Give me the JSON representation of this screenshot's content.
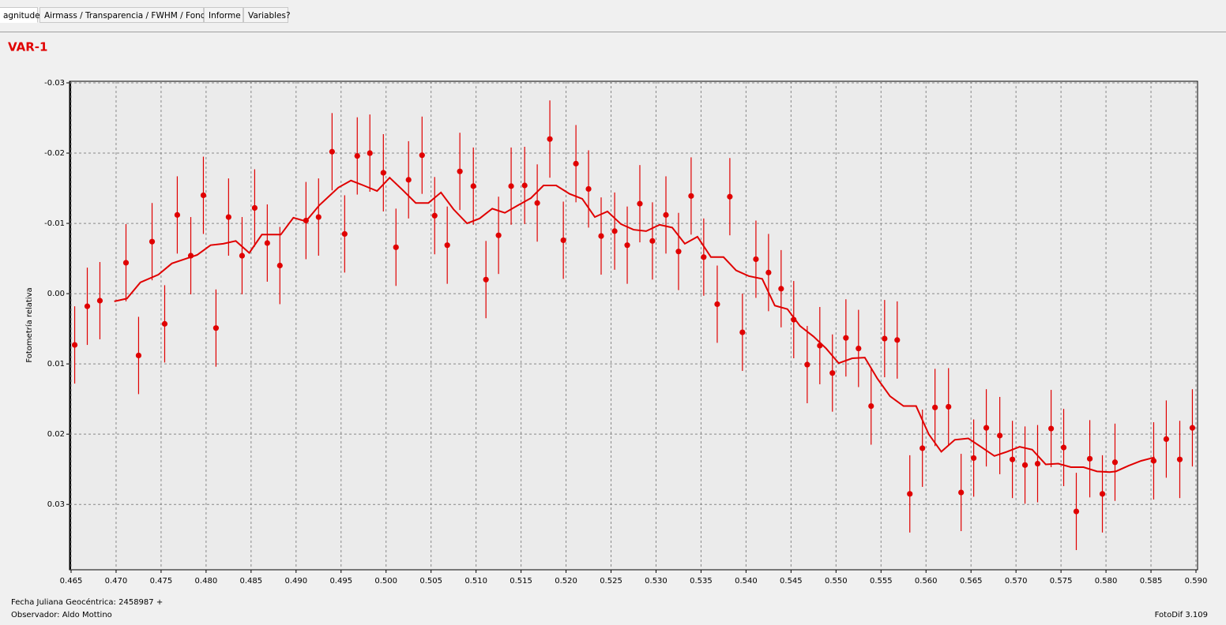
{
  "tabs": [
    "agnitudes",
    "Airmass / Transparencia / FWHM / Fondo",
    "Informe",
    "Variables?"
  ],
  "footer": {
    "date_label": "Fecha Juliana Geocéntrica: 2458987 +",
    "observer": "Observador: Aldo Mottino",
    "version": "FotoDif 3.109"
  },
  "chart_data": {
    "type": "scatter",
    "title": "VAR-1",
    "y_label": "Fotometría relativa",
    "y_inverted": true,
    "grid": true,
    "xlim": [
      0.465,
      0.59
    ],
    "ylim": [
      -0.03,
      0.0393
    ],
    "xticks": [
      {
        "value": 0.465,
        "label": "0.465"
      },
      {
        "value": 0.47,
        "label": "0.470"
      },
      {
        "value": 0.475,
        "label": "0.475"
      },
      {
        "value": 0.48,
        "label": "0.480"
      },
      {
        "value": 0.485,
        "label": "0.485"
      },
      {
        "value": 0.49,
        "label": "0.490"
      },
      {
        "value": 0.495,
        "label": "0.495"
      },
      {
        "value": 0.5,
        "label": "0.500"
      },
      {
        "value": 0.505,
        "label": "0.505"
      },
      {
        "value": 0.51,
        "label": "0.510"
      },
      {
        "value": 0.515,
        "label": "0.515"
      },
      {
        "value": 0.52,
        "label": "0.520"
      },
      {
        "value": 0.525,
        "label": "0.525"
      },
      {
        "value": 0.53,
        "label": "0.530"
      },
      {
        "value": 0.535,
        "label": "0.535"
      },
      {
        "value": 0.54,
        "label": "0.540"
      },
      {
        "value": 0.545,
        "label": "0.545"
      },
      {
        "value": 0.55,
        "label": "0.550"
      },
      {
        "value": 0.555,
        "label": "0.555"
      },
      {
        "value": 0.56,
        "label": "0.560"
      },
      {
        "value": 0.565,
        "label": "0.565"
      },
      {
        "value": 0.57,
        "label": "0.570"
      },
      {
        "value": 0.575,
        "label": "0.575"
      },
      {
        "value": 0.58,
        "label": "0.580"
      },
      {
        "value": 0.585,
        "label": "0.585"
      },
      {
        "value": 0.59,
        "label": "0.590"
      }
    ],
    "yticks": [
      -0.03,
      -0.02,
      -0.01,
      {
        "value": 0,
        "label": "0.00"
      },
      0.01,
      0.02,
      0.03
    ],
    "series": [
      {
        "type": "scatter",
        "color": "#e00000",
        "x": [
          0.4654,
          0.4668,
          0.4682,
          0.4711,
          0.4725,
          0.474,
          0.4754,
          0.4768,
          0.4783,
          0.4797,
          0.4811,
          0.4825,
          0.484,
          0.4854,
          0.4868,
          0.4882,
          0.4911,
          0.4925,
          0.494,
          0.4954,
          0.4968,
          0.4982,
          0.4997,
          0.5011,
          0.5025,
          0.504,
          0.5054,
          0.5068,
          0.5082,
          0.5097,
          0.5111,
          0.5125,
          0.5139,
          0.5154,
          0.5168,
          0.5182,
          0.5197,
          0.5211,
          0.5225,
          0.5239,
          0.5254,
          0.5268,
          0.5282,
          0.5296,
          0.5311,
          0.5325,
          0.5339,
          0.5353,
          0.5368,
          0.5382,
          0.5396,
          0.5411,
          0.5425,
          0.5439,
          0.5453,
          0.5468,
          0.5482,
          0.5496,
          0.5511,
          0.5525,
          0.5539,
          0.5554,
          0.5568,
          0.5582,
          0.5596,
          0.561,
          0.5625,
          0.5639,
          0.5653,
          0.5667,
          0.5682,
          0.5696,
          0.571,
          0.5724,
          0.5739,
          0.5753,
          0.5767,
          0.5782,
          0.5796,
          0.581,
          0.5853,
          0.5867,
          0.5882,
          0.5896
        ],
        "values": [
          0.0073,
          0.0018,
          0.001,
          -0.0044,
          0.0088,
          -0.0074,
          0.0043,
          -0.0112,
          -0.0054,
          -0.014,
          0.0049,
          -0.0109,
          -0.0054,
          -0.0122,
          -0.0072,
          -0.004,
          -0.0104,
          -0.0109,
          -0.0202,
          -0.0085,
          -0.0196,
          -0.02,
          -0.0172,
          -0.0066,
          -0.0162,
          -0.0197,
          -0.0111,
          -0.0069,
          -0.0174,
          -0.0153,
          -0.002,
          -0.0083,
          -0.0153,
          -0.0154,
          -0.0129,
          -0.022,
          -0.0076,
          -0.0185,
          -0.0149,
          -0.0082,
          -0.0089,
          -0.0069,
          -0.0128,
          -0.0075,
          -0.0112,
          -0.006,
          -0.0139,
          -0.0052,
          0.0015,
          -0.0138,
          0.0055,
          -0.0049,
          -0.003,
          -0.0007,
          0.0037,
          0.0101,
          0.0074,
          0.0113,
          0.0063,
          0.0078,
          0.016,
          0.0064,
          0.0066,
          0.0285,
          0.022,
          0.0162,
          0.0161,
          0.0283,
          0.0234,
          0.0191,
          0.0202,
          0.0236,
          0.0244,
          0.0242,
          0.0192,
          0.0219,
          0.031,
          0.0235,
          0.0285,
          0.024,
          0.0238,
          0.0207,
          0.0236,
          0.0191
        ],
        "errors": [
          0.0055,
          0.0055,
          0.0055,
          0.0055,
          0.0055,
          0.0055,
          0.0055,
          0.0055,
          0.0055,
          0.0055,
          0.0055,
          0.0055,
          0.0055,
          0.0055,
          0.0055,
          0.0055,
          0.0055,
          0.0055,
          0.0055,
          0.0055,
          0.0055,
          0.0055,
          0.0055,
          0.0055,
          0.0055,
          0.0055,
          0.0055,
          0.0055,
          0.0055,
          0.0055,
          0.0055,
          0.0055,
          0.0055,
          0.0055,
          0.0055,
          0.0055,
          0.0055,
          0.0055,
          0.0055,
          0.0055,
          0.0055,
          0.0055,
          0.0055,
          0.0055,
          0.0055,
          0.0055,
          0.0055,
          0.0055,
          0.0055,
          0.0055,
          0.0055,
          0.0055,
          0.0055,
          0.0055,
          0.0055,
          0.0055,
          0.0055,
          0.0055,
          0.0055,
          0.0055,
          0.0055,
          0.0055,
          0.0055,
          0.0055,
          0.0055,
          0.0055,
          0.0055,
          0.0055,
          0.0055,
          0.0055,
          0.0055,
          0.0055,
          0.0055,
          0.0055,
          0.0055,
          0.0055,
          0.0055,
          0.0055,
          0.0055,
          0.0055,
          0.0055,
          0.0055,
          0.0055,
          0.0055
        ]
      },
      {
        "type": "line",
        "color": "#e00000",
        "x": [
          0.4698,
          0.4712,
          0.4727,
          0.4747,
          0.4762,
          0.4776,
          0.479,
          0.4805,
          0.4819,
          0.4833,
          0.4848,
          0.4862,
          0.4883,
          0.4897,
          0.4911,
          0.4926,
          0.4947,
          0.4961,
          0.4975,
          0.499,
          0.5004,
          0.5018,
          0.5033,
          0.5047,
          0.5061,
          0.5075,
          0.509,
          0.5104,
          0.5118,
          0.5132,
          0.5147,
          0.5161,
          0.5175,
          0.5189,
          0.5204,
          0.5218,
          0.5232,
          0.5246,
          0.5261,
          0.5275,
          0.5289,
          0.5304,
          0.5318,
          0.5332,
          0.5346,
          0.5361,
          0.5375,
          0.5389,
          0.5403,
          0.5418,
          0.5432,
          0.5446,
          0.546,
          0.5475,
          0.5489,
          0.5503,
          0.5518,
          0.5532,
          0.5546,
          0.556,
          0.5575,
          0.5589,
          0.5603,
          0.5617,
          0.5632,
          0.5647,
          0.5661,
          0.5676,
          0.569,
          0.5704,
          0.5718,
          0.5733,
          0.5747,
          0.5761,
          0.5775,
          0.579,
          0.5804,
          0.5811,
          0.5825,
          0.5839,
          0.5854
        ],
        "values": [
          0.0011,
          0.0007,
          -0.0016,
          -0.0027,
          -0.0043,
          -0.0049,
          -0.0055,
          -0.0069,
          -0.0071,
          -0.0075,
          -0.0058,
          -0.0084,
          -0.0084,
          -0.0108,
          -0.0103,
          -0.0126,
          -0.0151,
          -0.0161,
          -0.0154,
          -0.0146,
          -0.0165,
          -0.0148,
          -0.0129,
          -0.0129,
          -0.0144,
          -0.012,
          -0.01,
          -0.0107,
          -0.0121,
          -0.0115,
          -0.0126,
          -0.0136,
          -0.0154,
          -0.0154,
          -0.0142,
          -0.0135,
          -0.0109,
          -0.0117,
          -0.0099,
          -0.0091,
          -0.0089,
          -0.0098,
          -0.0094,
          -0.0071,
          -0.0081,
          -0.0052,
          -0.0052,
          -0.0033,
          -0.0025,
          -0.0021,
          0.0017,
          0.0022,
          0.0046,
          0.0061,
          0.0078,
          0.0099,
          0.0092,
          0.0091,
          0.0121,
          0.0146,
          0.016,
          0.016,
          0.02,
          0.0225,
          0.0208,
          0.0206,
          0.0218,
          0.0231,
          0.0225,
          0.0218,
          0.0222,
          0.0243,
          0.0242,
          0.0247,
          0.0247,
          0.0253,
          0.0254,
          0.0253,
          0.0245,
          0.0238,
          0.0233
        ]
      }
    ]
  }
}
